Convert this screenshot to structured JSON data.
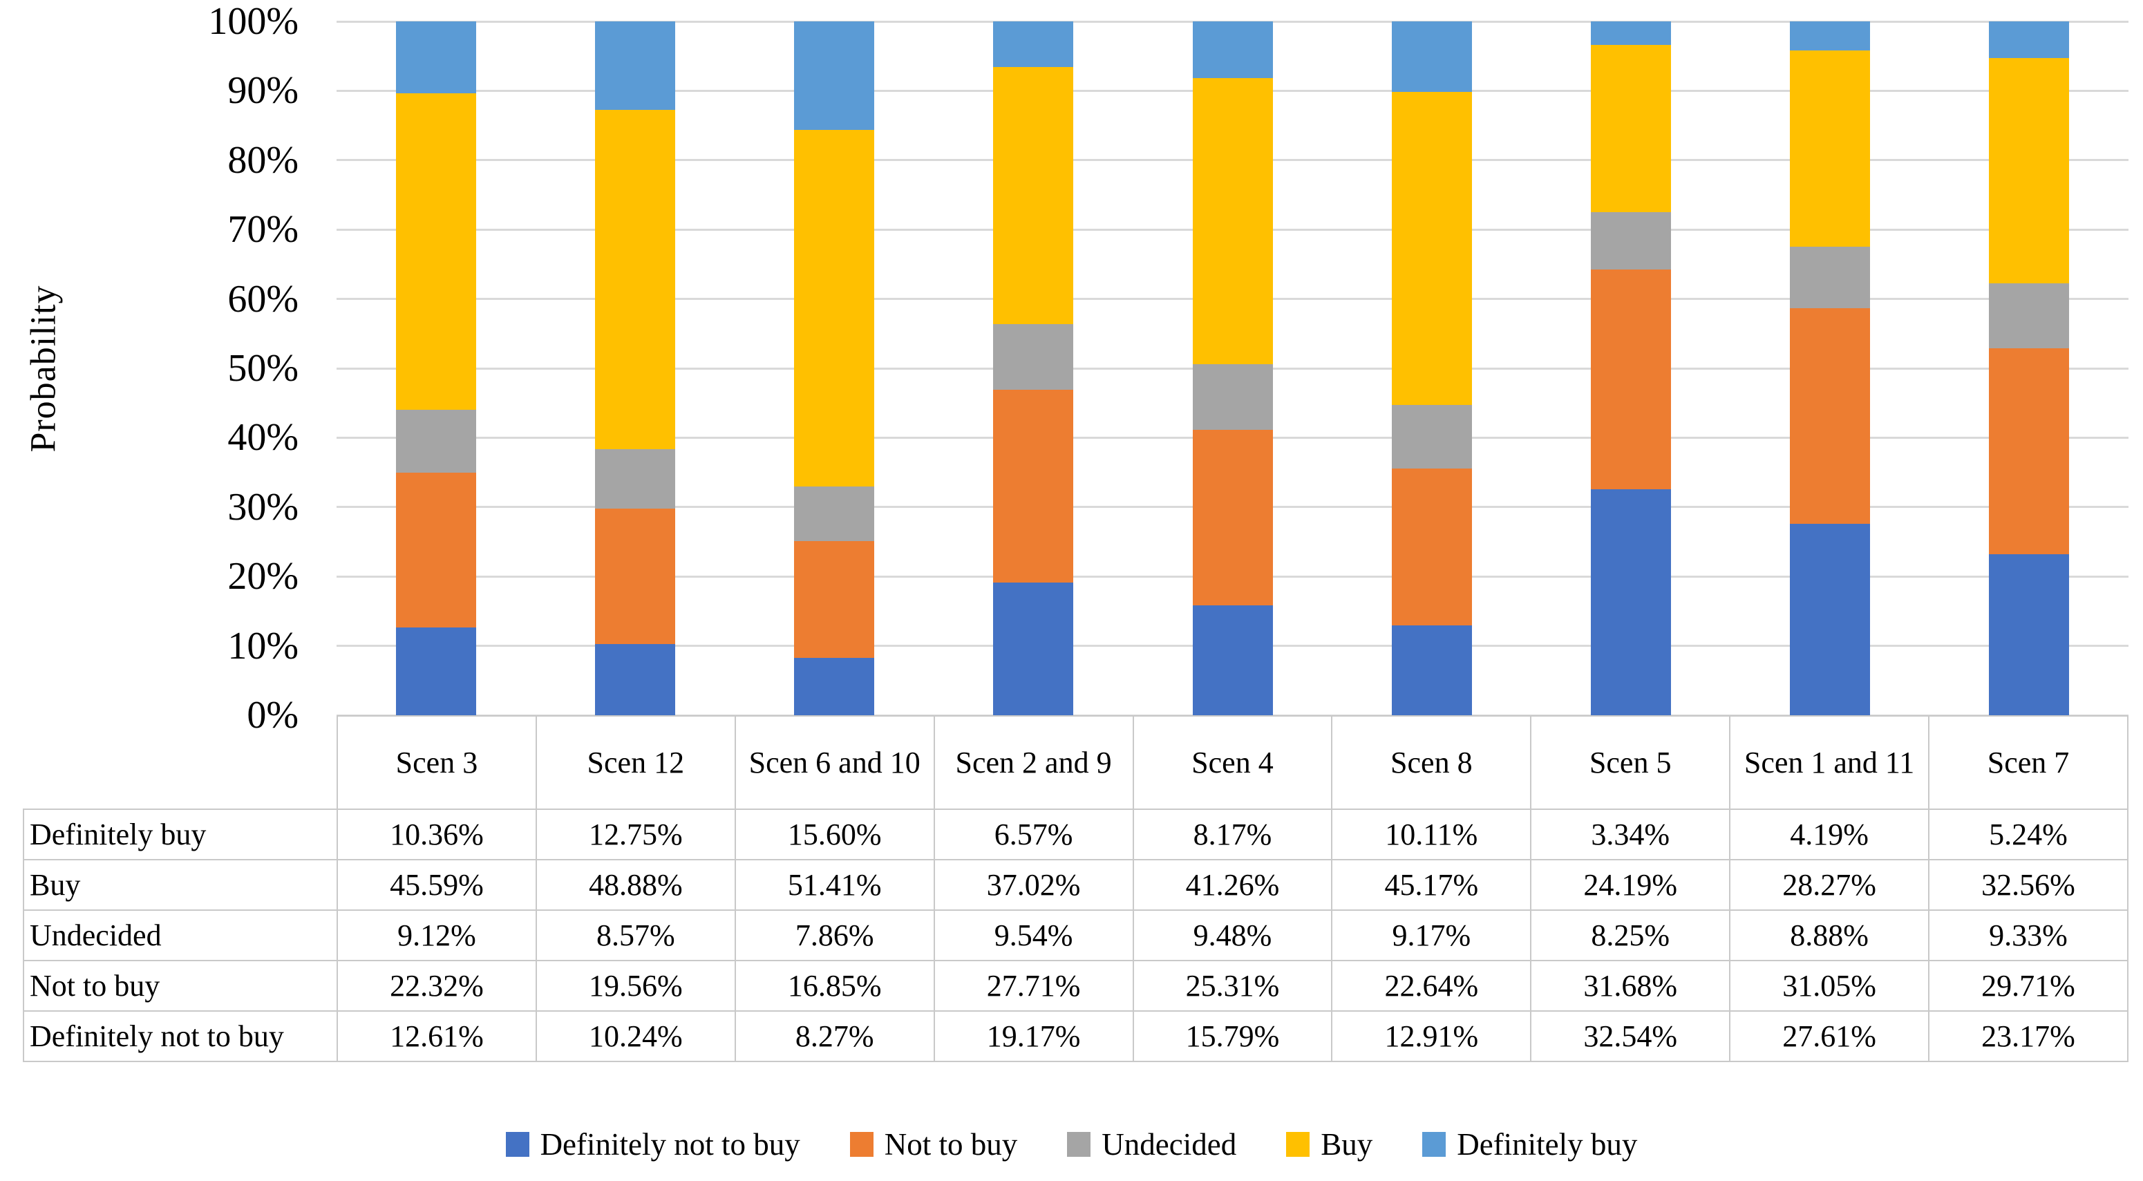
{
  "chart_data": {
    "type": "bar",
    "stacked": true,
    "unit": "percent",
    "title": "",
    "xlabel": "",
    "ylabel": "Probability",
    "ylim": [
      0,
      100
    ],
    "yticks": [
      "100%",
      "90%",
      "80%",
      "70%",
      "60%",
      "50%",
      "40%",
      "30%",
      "20%",
      "10%",
      "0%"
    ],
    "grid": true,
    "legend_position": "bottom",
    "categories": [
      "Scen 3",
      "Scen 12",
      "Scen 6 and 10",
      "Scen 2 and 9",
      "Scen 4",
      "Scen 8",
      "Scen 5",
      "Scen 1 and 11",
      "Scen 7"
    ],
    "series": [
      {
        "name": "Definitely not to buy",
        "color": "#4472C4",
        "values": [
          12.61,
          10.24,
          8.27,
          19.17,
          15.79,
          12.91,
          32.54,
          27.61,
          23.17
        ]
      },
      {
        "name": "Not to buy",
        "color": "#ED7D31",
        "values": [
          22.32,
          19.56,
          16.85,
          27.71,
          25.31,
          22.64,
          31.68,
          31.05,
          29.71
        ]
      },
      {
        "name": "Undecided",
        "color": "#A5A5A5",
        "values": [
          9.12,
          8.57,
          7.86,
          9.54,
          9.48,
          9.17,
          8.25,
          8.88,
          9.33
        ]
      },
      {
        "name": "Buy",
        "color": "#FFC000",
        "values": [
          45.59,
          48.88,
          51.41,
          37.02,
          41.26,
          45.17,
          24.19,
          28.27,
          32.56
        ]
      },
      {
        "name": "Definitely buy",
        "color": "#5B9BD5",
        "values": [
          10.36,
          12.75,
          15.6,
          6.57,
          8.17,
          10.11,
          3.34,
          4.19,
          5.24
        ]
      }
    ]
  },
  "table": {
    "col_headers": [
      "Scen 3",
      "Scen 12",
      "Scen 6 and 10",
      "Scen 2 and 9",
      "Scen 4",
      "Scen 8",
      "Scen 5",
      "Scen 1 and 11",
      "Scen 7"
    ],
    "row_headers": [
      "Definitely buy",
      "Buy",
      "Undecided",
      "Not to buy",
      "Definitely not to buy"
    ],
    "rows": [
      [
        "10.36%",
        "12.75%",
        "15.60%",
        "6.57%",
        "8.17%",
        "10.11%",
        "3.34%",
        "4.19%",
        "5.24%"
      ],
      [
        "45.59%",
        "48.88%",
        "51.41%",
        "37.02%",
        "41.26%",
        "45.17%",
        "24.19%",
        "28.27%",
        "32.56%"
      ],
      [
        "9.12%",
        "8.57%",
        "7.86%",
        "9.54%",
        "9.48%",
        "9.17%",
        "8.25%",
        "8.88%",
        "9.33%"
      ],
      [
        "22.32%",
        "19.56%",
        "16.85%",
        "27.71%",
        "25.31%",
        "22.64%",
        "31.68%",
        "31.05%",
        "29.71%"
      ],
      [
        "12.61%",
        "10.24%",
        "8.27%",
        "19.17%",
        "15.79%",
        "12.91%",
        "32.54%",
        "27.61%",
        "23.17%"
      ]
    ]
  },
  "legend": {
    "items": [
      {
        "label": "Definitely not to buy",
        "color": "#4472C4"
      },
      {
        "label": "Not to buy",
        "color": "#ED7D31"
      },
      {
        "label": "Undecided",
        "color": "#A5A5A5"
      },
      {
        "label": "Buy",
        "color": "#FFC000"
      },
      {
        "label": "Definitely buy",
        "color": "#5B9BD5"
      }
    ]
  },
  "style": {
    "gridline_color": "#D9D9D9",
    "table_border_color": "#C9C9C9"
  }
}
